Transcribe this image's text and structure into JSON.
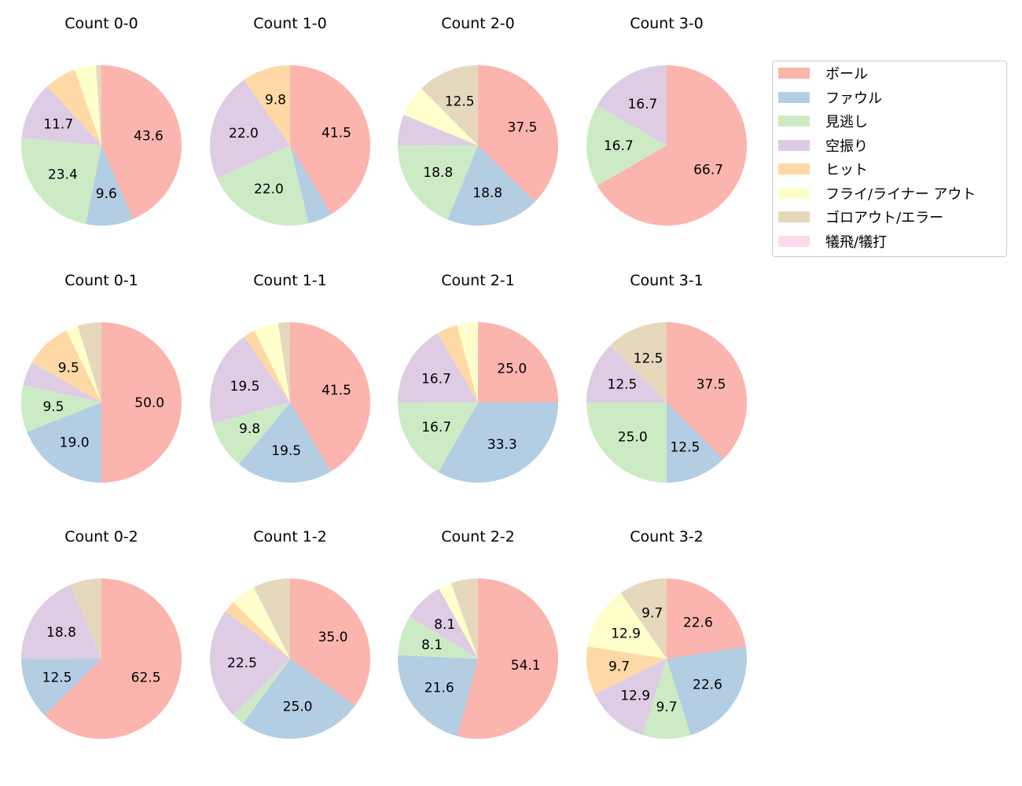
{
  "chart_data": {
    "type": "pie",
    "direction": "clockwise",
    "start": "top",
    "legend_placement": "upper-right",
    "categories": [
      "ボール",
      "ファウル",
      "見逃し",
      "空振り",
      "ヒット",
      "フライ/ライナー アウト",
      "ゴロアウト/エラー",
      "犠飛/犠打"
    ],
    "colors": [
      "#fbb4ae",
      "#b3cde3",
      "#ccebc5",
      "#decbe4",
      "#fed9a6",
      "#ffffcc",
      "#e5d8bd",
      "#fddaec"
    ],
    "charts": [
      {
        "title": "Count 0-0",
        "values": [
          43.6,
          9.6,
          23.4,
          11.7,
          6.4,
          4.3,
          1.1,
          0
        ]
      },
      {
        "title": "Count 1-0",
        "values": [
          41.5,
          4.9,
          22.0,
          22.0,
          9.8,
          0,
          0,
          0
        ]
      },
      {
        "title": "Count 2-0",
        "values": [
          37.5,
          18.8,
          18.8,
          6.3,
          0,
          6.3,
          12.5,
          0
        ]
      },
      {
        "title": "Count 3-0",
        "values": [
          66.7,
          0,
          16.7,
          16.7,
          0,
          0,
          0,
          0
        ]
      },
      {
        "title": "Count 0-1",
        "values": [
          50.0,
          19.0,
          9.5,
          4.8,
          9.5,
          2.4,
          4.8,
          0
        ]
      },
      {
        "title": "Count 1-1",
        "values": [
          41.5,
          19.5,
          9.8,
          19.5,
          2.4,
          4.9,
          2.4,
          0
        ]
      },
      {
        "title": "Count 2-1",
        "values": [
          25.0,
          33.3,
          16.7,
          16.7,
          4.2,
          4.2,
          0,
          0
        ]
      },
      {
        "title": "Count 3-1",
        "values": [
          37.5,
          12.5,
          25.0,
          12.5,
          0,
          0,
          12.5,
          0
        ]
      },
      {
        "title": "Count 0-2",
        "values": [
          62.5,
          12.5,
          0,
          18.8,
          0,
          0,
          6.3,
          0
        ]
      },
      {
        "title": "Count 1-2",
        "values": [
          35.0,
          25.0,
          2.5,
          22.5,
          2.5,
          5.0,
          7.5,
          0
        ]
      },
      {
        "title": "Count 2-2",
        "values": [
          54.1,
          21.6,
          8.1,
          8.1,
          0,
          2.7,
          5.4,
          0
        ]
      },
      {
        "title": "Count 3-2",
        "values": [
          22.6,
          22.6,
          9.7,
          12.9,
          9.7,
          12.9,
          9.7,
          0
        ]
      }
    ]
  }
}
